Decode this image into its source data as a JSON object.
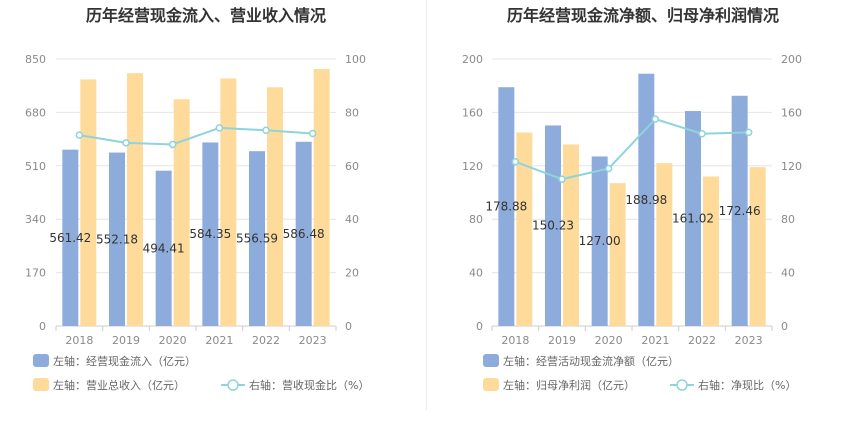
{
  "chart_data": [
    {
      "type": "bar",
      "title": "历年经营现金流入、营业收入情况",
      "categories": [
        "2018",
        "2019",
        "2020",
        "2021",
        "2022",
        "2023"
      ],
      "y_left": {
        "ticks": [
          "0",
          "170",
          "340",
          "510",
          "680",
          "850"
        ],
        "ylim": [
          0,
          850
        ]
      },
      "y_right": {
        "ticks": [
          "0",
          "20",
          "40",
          "60",
          "80",
          "100"
        ],
        "ylim": [
          0,
          100
        ]
      },
      "series": [
        {
          "name": "左轴：经营现金流入（亿元）",
          "axis": "left",
          "kind": "bar",
          "color": "#8eacdb",
          "values": [
            561.42,
            552.18,
            494.41,
            584.35,
            556.59,
            586.48
          ],
          "labels": [
            "561.42",
            "552.18",
            "494.41",
            "584.35",
            "556.59",
            "586.48"
          ]
        },
        {
          "name": "左轴：营业总收入（亿元）",
          "axis": "left",
          "kind": "bar",
          "color": "#fedb9b",
          "values": [
            785,
            805,
            722,
            788,
            760,
            818
          ]
        },
        {
          "name": "右轴：营收现金比（%）",
          "axis": "right",
          "kind": "line",
          "color": "#8ed4dc",
          "values": [
            71.5,
            68.6,
            68.0,
            74.2,
            73.3,
            72.1
          ]
        }
      ],
      "grid": true
    },
    {
      "type": "bar",
      "title": "历年经营现金流净额、归母净利润情况",
      "categories": [
        "2018",
        "2019",
        "2020",
        "2021",
        "2022",
        "2023"
      ],
      "y_left": {
        "ticks": [
          "0",
          "40",
          "80",
          "120",
          "160",
          "200"
        ],
        "ylim": [
          0,
          200
        ]
      },
      "y_right": {
        "ticks": [
          "0",
          "40",
          "80",
          "120",
          "160",
          "200"
        ],
        "ylim": [
          0,
          200
        ]
      },
      "series": [
        {
          "name": "左轴：经营活动现金流净额（亿元）",
          "axis": "left",
          "kind": "bar",
          "color": "#8eacdb",
          "values": [
            178.88,
            150.23,
            127.0,
            188.98,
            161.02,
            172.46
          ],
          "labels": [
            "178.88",
            "150.23",
            "127.00",
            "188.98",
            "161.02",
            "172.46"
          ]
        },
        {
          "name": "左轴：归母净利润（亿元）",
          "axis": "left",
          "kind": "bar",
          "color": "#fedb9b",
          "values": [
            145,
            136,
            107,
            122,
            112,
            119
          ]
        },
        {
          "name": "右轴：净现比（%）",
          "axis": "right",
          "kind": "line",
          "color": "#8ed4dc",
          "values": [
            123,
            110,
            118,
            155,
            144,
            145
          ]
        }
      ],
      "grid": true
    }
  ]
}
